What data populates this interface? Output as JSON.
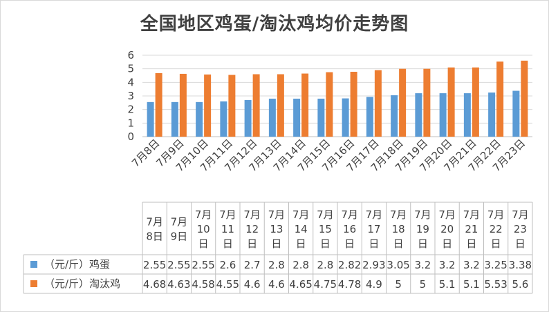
{
  "chart_data": {
    "type": "bar",
    "title": "全国地区鸡蛋/淘汰鸡均价走势图",
    "categories": [
      "7月8日",
      "7月9日",
      "7月10日",
      "7月11日",
      "7月12日",
      "7月13日",
      "7月14日",
      "7月15日",
      "7月16日",
      "7月17日",
      "7月18日",
      "7月19日",
      "7月20日",
      "7月21日",
      "7月22日",
      "7月23日"
    ],
    "table_categories": [
      "7月8日",
      "7月9日",
      "7月10日",
      "7月11日",
      "7月12日",
      "7月13日",
      "7月14日",
      "7月15日",
      "7月16日",
      "7月17日",
      "7月18日",
      "7月19日",
      "7月20日",
      "7月21日",
      "7月22日",
      "7月23日"
    ],
    "series": [
      {
        "name": "（元/斤）鸡蛋",
        "color": "#5b9bd5",
        "values": [
          2.55,
          2.55,
          2.55,
          2.6,
          2.7,
          2.8,
          2.8,
          2.8,
          2.82,
          2.93,
          3.05,
          3.2,
          3.2,
          3.2,
          3.25,
          3.38
        ],
        "labels": [
          "2.55",
          "2.55",
          "2.55",
          "2.6",
          "2.7",
          "2.8",
          "2.8",
          "2.8",
          "2.82",
          "2.93",
          "3.05",
          "3.2",
          "3.2",
          "3.2",
          "3.25",
          "3.38"
        ]
      },
      {
        "name": "（元/斤）淘汰鸡",
        "color": "#ed7d31",
        "values": [
          4.68,
          4.63,
          4.58,
          4.55,
          4.6,
          4.6,
          4.65,
          4.75,
          4.78,
          4.9,
          5,
          5,
          5.1,
          5.1,
          5.53,
          5.6
        ],
        "labels": [
          "4.68",
          "4.63",
          "4.58",
          "4.55",
          "4.6",
          "4.6",
          "4.65",
          "4.75",
          "4.78",
          "4.9",
          "5",
          "5",
          "5.1",
          "5.1",
          "5.53",
          "5.6"
        ]
      }
    ],
    "ylim": [
      0,
      6
    ],
    "yticks": [
      "0",
      "1",
      "2",
      "3",
      "4",
      "5",
      "6"
    ],
    "grid": true,
    "legend": "data-table"
  }
}
